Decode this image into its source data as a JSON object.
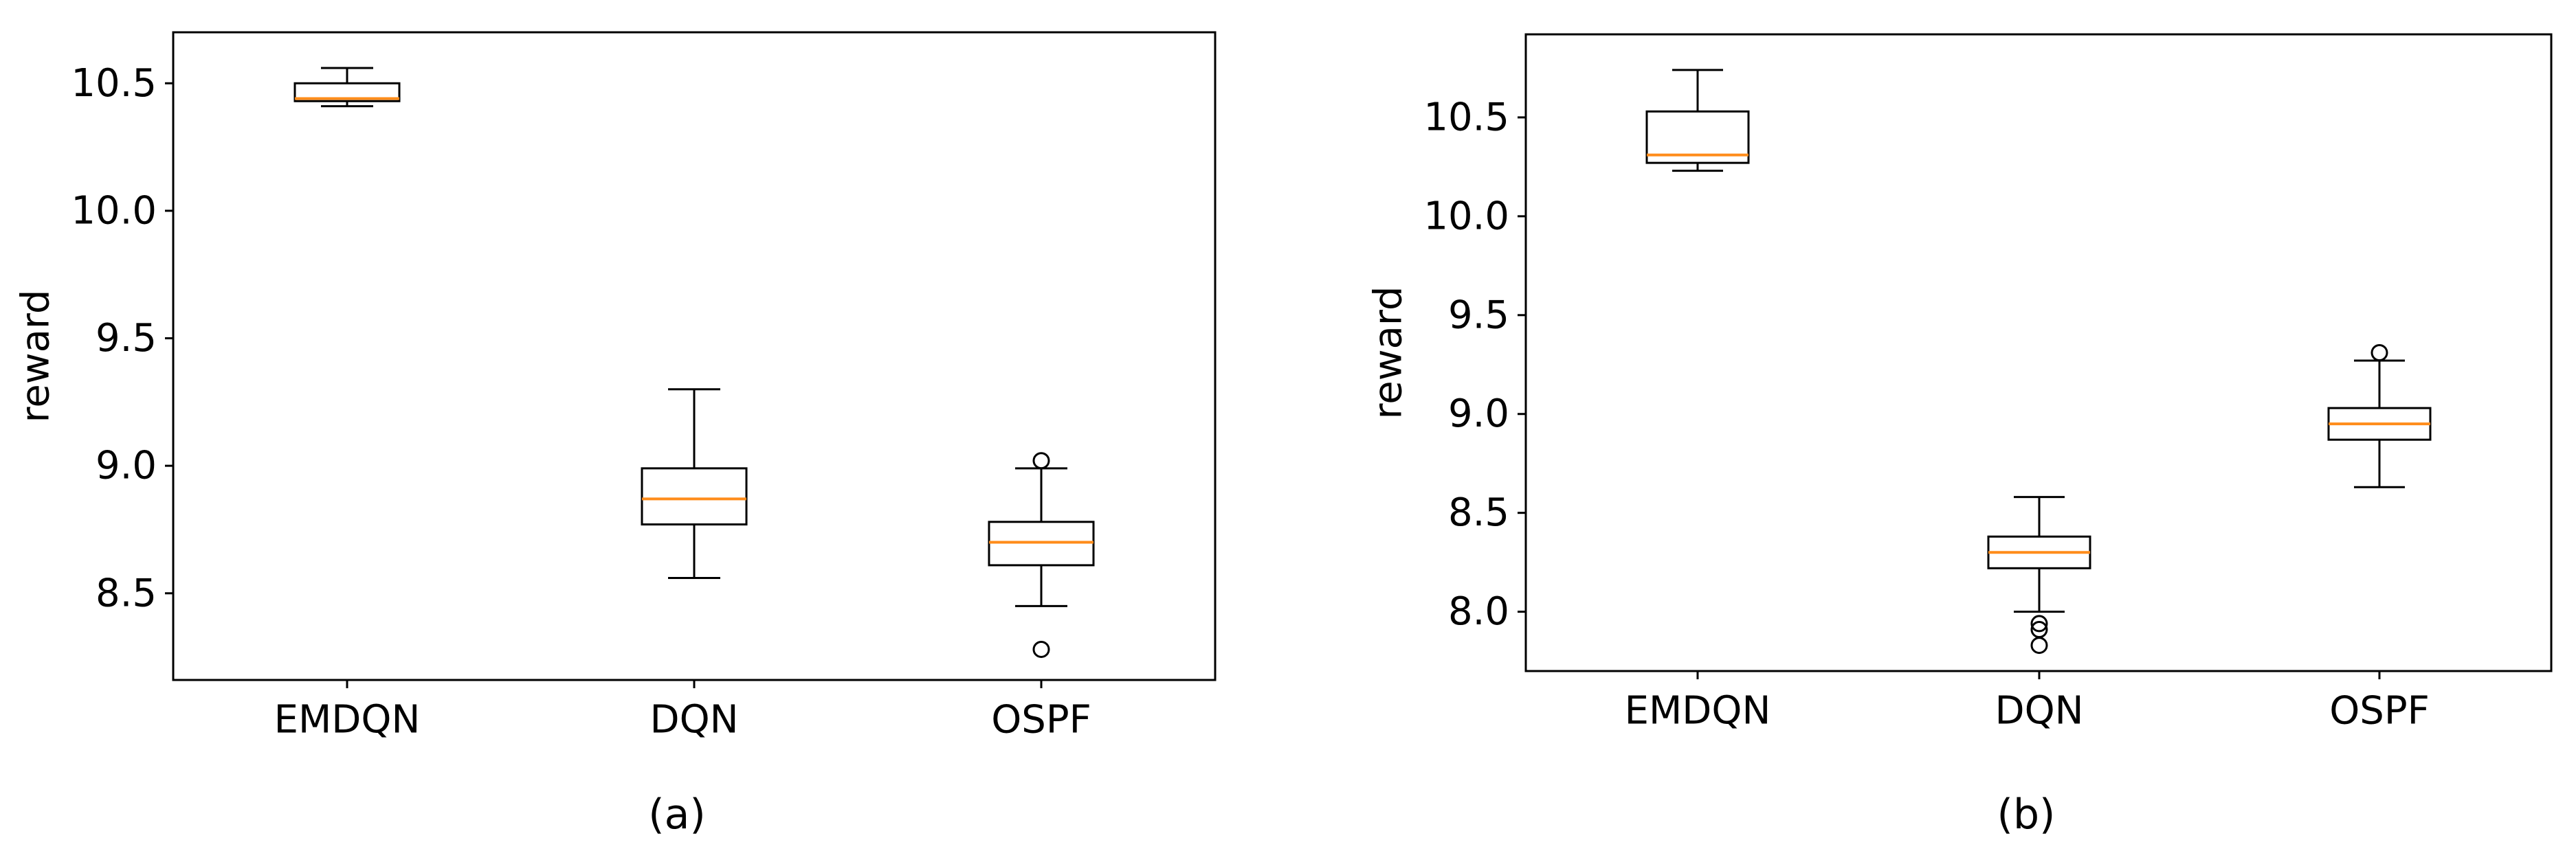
{
  "chart_data": [
    {
      "type": "box",
      "caption": "(a)",
      "ylabel": "reward",
      "xlabel": "",
      "categories": [
        "EMDQN",
        "DQN",
        "OSPF"
      ],
      "ylim": [
        8.16,
        10.7
      ],
      "yticks": [
        8.5,
        9.0,
        9.5,
        10.0,
        10.5
      ],
      "ytick_labels": [
        "8.5",
        "9.0",
        "9.5",
        "10.0",
        "10.5"
      ],
      "grid": false,
      "boxes": [
        {
          "category": "EMDQN",
          "whisker_low": 10.41,
          "q1": 10.43,
          "median": 10.44,
          "q3": 10.5,
          "whisker_high": 10.56,
          "outliers": []
        },
        {
          "category": "DQN",
          "whisker_low": 8.56,
          "q1": 8.77,
          "median": 8.87,
          "q3": 8.99,
          "whisker_high": 9.3,
          "outliers": []
        },
        {
          "category": "OSPF",
          "whisker_low": 8.45,
          "q1": 8.61,
          "median": 8.7,
          "q3": 8.78,
          "whisker_high": 8.99,
          "outliers": [
            9.02,
            8.28
          ]
        }
      ]
    },
    {
      "type": "box",
      "caption": "(b)",
      "ylabel": "reward",
      "xlabel": "",
      "categories": [
        "EMDQN",
        "DQN",
        "OSPF"
      ],
      "ylim": [
        7.7,
        10.92
      ],
      "yticks": [
        8.0,
        8.5,
        9.0,
        9.5,
        10.0,
        10.5
      ],
      "ytick_labels": [
        "8.0",
        "8.5",
        "9.0",
        "9.5",
        "10.0",
        "10.5"
      ],
      "grid": false,
      "boxes": [
        {
          "category": "EMDQN",
          "whisker_low": 10.23,
          "q1": 10.27,
          "median": 10.31,
          "q3": 10.53,
          "whisker_high": 10.74,
          "outliers": []
        },
        {
          "category": "DQN",
          "whisker_low": 8.0,
          "q1": 8.22,
          "median": 8.3,
          "q3": 8.38,
          "whisker_high": 8.58,
          "outliers": [
            7.94,
            7.91,
            7.83
          ]
        },
        {
          "category": "OSPF",
          "whisker_low": 8.63,
          "q1": 8.87,
          "median": 8.95,
          "q3": 9.03,
          "whisker_high": 9.27,
          "outliers": [
            9.31
          ]
        }
      ]
    }
  ],
  "colors": {
    "median": "#ff8c1a",
    "box_edge": "#000000",
    "axes": "#000000"
  }
}
